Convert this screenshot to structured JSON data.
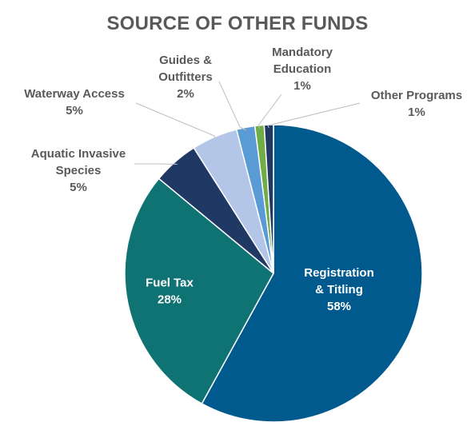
{
  "chart_data": {
    "type": "pie",
    "title": "SOURCE OF OTHER FUNDS",
    "slices": [
      {
        "name": "Registration & Titling",
        "value": 58,
        "label_lines": [
          "Registration",
          "& Titling",
          "58%"
        ],
        "color": "#005a8e",
        "label_inside": true
      },
      {
        "name": "Fuel Tax",
        "value": 28,
        "label_lines": [
          "Fuel Tax",
          "28%"
        ],
        "color": "#0f7273",
        "label_inside": true
      },
      {
        "name": "Aquatic Invasive Species",
        "value": 5,
        "label_lines": [
          "Aquatic Invasive",
          "Species",
          "5%"
        ],
        "color": "#1f3864",
        "label_inside": false
      },
      {
        "name": "Waterway Access",
        "value": 5,
        "label_lines": [
          "Waterway Access",
          "5%"
        ],
        "color": "#b4c6e7",
        "label_inside": false
      },
      {
        "name": "Guides & Outfitters",
        "value": 2,
        "label_lines": [
          "Guides &",
          "Outfitters",
          "2%"
        ],
        "color": "#5b9bd5",
        "label_inside": false
      },
      {
        "name": "Mandatory Education",
        "value": 1,
        "label_lines": [
          "Mandatory",
          "Education",
          "1%"
        ],
        "color": "#70ad47",
        "label_inside": false
      },
      {
        "name": "Other Programs",
        "value": 1,
        "label_lines": [
          "Other Programs",
          "1%"
        ],
        "color": "#203864",
        "label_inside": false
      }
    ]
  }
}
